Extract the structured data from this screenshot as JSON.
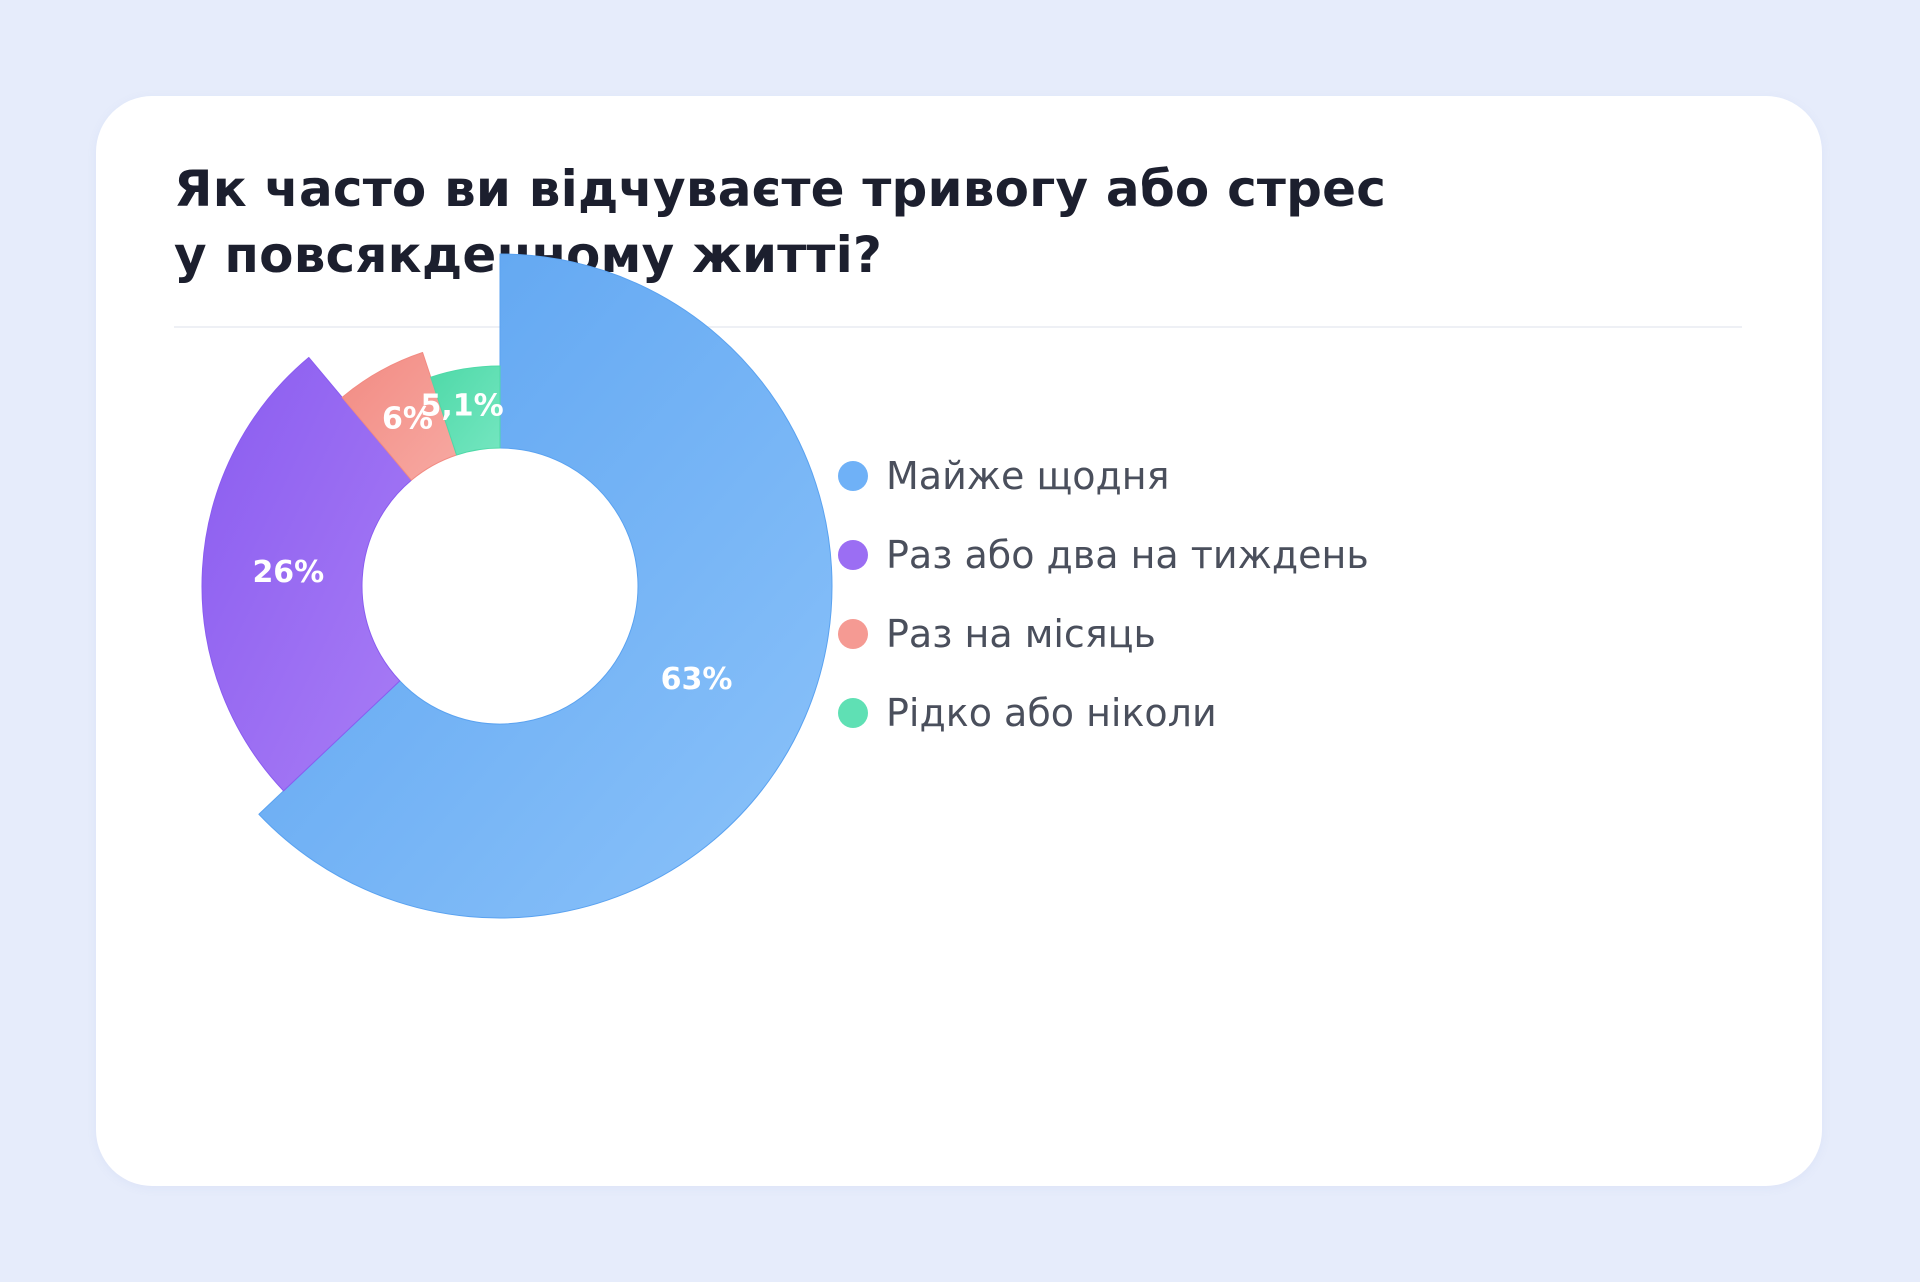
{
  "chart_data": {
    "type": "pie",
    "title": "Як часто ви відчуваєте тривогу або стрес у повсякденному житті?",
    "title_lines": [
      "Як часто ви відчуваєте тривогу або стрес",
      "у повсякденному житті?"
    ],
    "slices": [
      {
        "label": "Майже щодня",
        "value": 63,
        "display": "63%",
        "color": "#6fb1f7",
        "color_dark": "#5aa2f0",
        "color_light": "#8cc3fa"
      },
      {
        "label": "Раз або два на тиждень",
        "value": 26,
        "display": "26%",
        "color": "#9b6ef3",
        "color_dark": "#8a5cf0",
        "color_light": "#a97df5"
      },
      {
        "label": "Раз на місяць",
        "value": 6,
        "display": "6%",
        "color": "#f59a93",
        "color_dark": "#f28b83",
        "color_light": "#f7a9a2"
      },
      {
        "label": "Рідко або ніколи",
        "value": 5.1,
        "display": "5,1%",
        "color": "#5fe0b4",
        "color_dark": "#4fd9a8",
        "color_light": "#74e6c0"
      }
    ],
    "legend_position": "right"
  }
}
